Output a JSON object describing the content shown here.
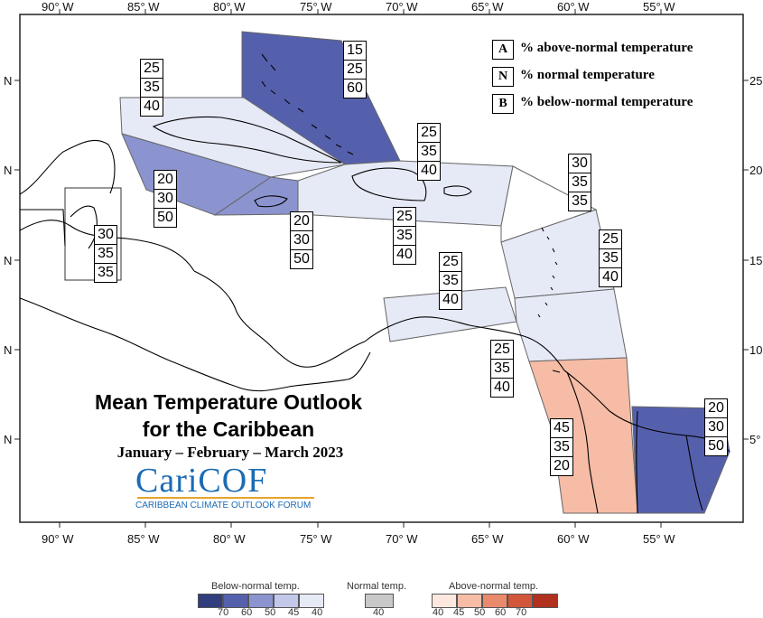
{
  "axes": {
    "lon_labels": [
      "90° W",
      "85° W",
      "80° W",
      "75° W",
      "70° W",
      "65° W",
      "60° W",
      "55° W"
    ],
    "lat_labels_left": [
      "N",
      "N",
      "N",
      "N",
      "N"
    ],
    "lat_labels_right": [
      "25",
      "20",
      "15",
      "10",
      "5°"
    ]
  },
  "legend": {
    "A": {
      "key": "A",
      "text": "% above-normal temperature"
    },
    "N": {
      "key": "N",
      "text": "% normal temperature"
    },
    "B": {
      "key": "B",
      "text": "% below-normal temperature"
    }
  },
  "regions": [
    {
      "name": "bahamas",
      "values": [
        "15",
        "25",
        "60"
      ]
    },
    {
      "name": "cuba",
      "values": [
        "25",
        "35",
        "40"
      ]
    },
    {
      "name": "hispaniola",
      "values": [
        "25",
        "35",
        "40"
      ]
    },
    {
      "name": "northern-leewards",
      "values": [
        "30",
        "35",
        "35"
      ]
    },
    {
      "name": "cayman",
      "values": [
        "20",
        "30",
        "50"
      ]
    },
    {
      "name": "jamaica",
      "values": [
        "20",
        "30",
        "50"
      ]
    },
    {
      "name": "caribbean-sea",
      "values": [
        "25",
        "35",
        "40"
      ]
    },
    {
      "name": "belize",
      "values": [
        "30",
        "35",
        "35"
      ]
    },
    {
      "name": "windwards",
      "values": [
        "25",
        "35",
        "40"
      ]
    },
    {
      "name": "abc-islands",
      "values": [
        "25",
        "35",
        "40"
      ]
    },
    {
      "name": "trinidad",
      "values": [
        "25",
        "35",
        "40"
      ]
    },
    {
      "name": "guyana",
      "values": [
        "45",
        "35",
        "20"
      ]
    },
    {
      "name": "suriname",
      "values": [
        "20",
        "30",
        "50"
      ]
    }
  ],
  "title": {
    "line1": "Mean Temperature Outlook",
    "line2": "for the Caribbean",
    "period": "January – February – March 2023"
  },
  "logo": {
    "text": "CariCOF",
    "subtitle": "CARIBBEAN CLIMATE OUTLOOK FORUM"
  },
  "scale": {
    "below_label": "Below-normal temp.",
    "normal_label": "Normal temp.",
    "above_label": "Above-normal temp.",
    "below_ticks": [
      "70",
      "60",
      "50",
      "45",
      "40"
    ],
    "normal_ticks": [
      "40"
    ],
    "above_ticks": [
      "40",
      "45",
      "50",
      "60",
      "70"
    ],
    "below_colors": [
      "#303e7e",
      "#5560ad",
      "#8b94cf",
      "#c2c8ea",
      "#e6e9f6"
    ],
    "normal_color": "#c8c8c8",
    "above_colors": [
      "#fde8df",
      "#f6bca6",
      "#ea8a6d",
      "#d2563a",
      "#b1311f"
    ]
  }
}
